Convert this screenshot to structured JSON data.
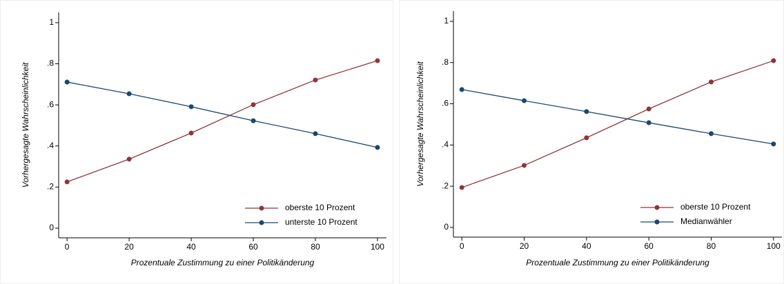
{
  "chart_data": [
    {
      "type": "line",
      "xlabel": "Prozentuale Zustimmung zu einer Politikänderung",
      "ylabel": "Vorhergesagte Wahrscheinlichkeit",
      "x": [
        0,
        20,
        40,
        60,
        80,
        100
      ],
      "series": [
        {
          "name": "oberste 10 Prozent",
          "color": "#90353b",
          "values": [
            0.225,
            0.336,
            0.463,
            0.601,
            0.721,
            0.815
          ]
        },
        {
          "name": "unterste 10 Prozent",
          "color": "#1a476f",
          "values": [
            0.711,
            0.654,
            0.591,
            0.523,
            0.46,
            0.393
          ]
        }
      ],
      "xlim": [
        -2.7,
        102.9
      ],
      "xticks": [
        0,
        20,
        40,
        60,
        80,
        100
      ],
      "ylim": [
        -0.047,
        1.05
      ],
      "yticks": [
        0,
        {
          "value": 0.2,
          "label": ".2"
        },
        {
          "value": 0.4,
          "label": ".4"
        },
        {
          "value": 0.6,
          "label": ".6"
        },
        {
          "value": 0.8,
          "label": ".8"
        },
        1
      ],
      "legend": "lower right"
    },
    {
      "type": "line",
      "xlabel": "Prozentuale Zustimmung zu einer Politikänderung",
      "ylabel": "Vorhergesagte Wahrscheinlichkeit",
      "x": [
        0,
        20,
        40,
        60,
        80,
        100
      ],
      "series": [
        {
          "name": "oberste 10 Prozent",
          "color": "#90353b",
          "values": [
            0.194,
            0.301,
            0.435,
            0.575,
            0.706,
            0.809
          ]
        },
        {
          "name": "Medianwähler",
          "color": "#1a476f",
          "values": [
            0.669,
            0.615,
            0.562,
            0.508,
            0.455,
            0.405
          ]
        }
      ],
      "xlim": [
        -2.7,
        102.7
      ],
      "xticks": [
        0,
        20,
        40,
        60,
        80,
        100
      ],
      "ylim": [
        -0.047,
        1.05
      ],
      "yticks": [
        0,
        {
          "value": 0.2,
          "label": ".2"
        },
        {
          "value": 0.4,
          "label": ".4"
        },
        {
          "value": 0.6,
          "label": ".6"
        },
        {
          "value": 0.8,
          "label": ".8"
        },
        1
      ],
      "legend": "lower right"
    }
  ]
}
